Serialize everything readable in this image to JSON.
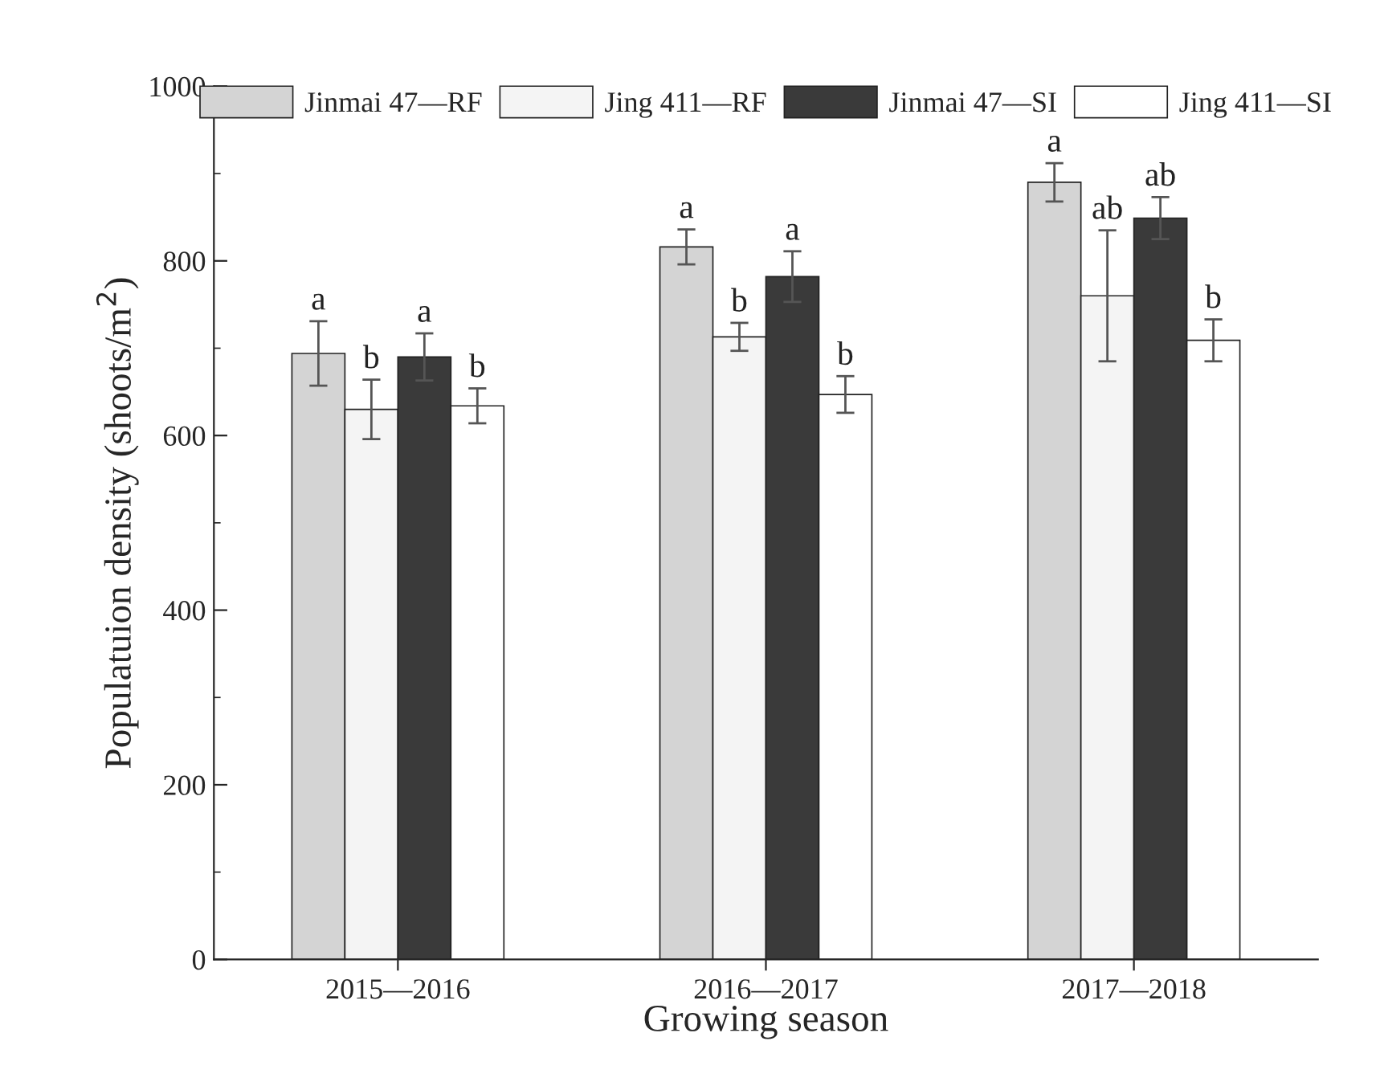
{
  "chart_data": {
    "type": "bar",
    "xlabel": "Growing season",
    "ylabel": "Populatuion density (shoots/m$^{2}$)",
    "categories": [
      "2015—2016",
      "2016—2017",
      "2017—2018"
    ],
    "series": [
      {
        "name": "Jinmai 47—RF",
        "color": "#d4d4d4",
        "values": [
          694,
          816,
          890
        ],
        "errors": [
          37,
          20,
          22
        ],
        "value_labels": [
          "a",
          "a",
          "a"
        ]
      },
      {
        "name": "Jing 411—RF",
        "color": "#f4f4f4",
        "values": [
          630,
          713,
          760
        ],
        "errors": [
          34,
          16,
          75
        ],
        "value_labels": [
          "b",
          "b",
          "ab"
        ]
      },
      {
        "name": "Jinmai 47—SI",
        "color": "#3a3a3a",
        "values": [
          690,
          782,
          849
        ],
        "errors": [
          27,
          29,
          24
        ],
        "value_labels": [
          "a",
          "a",
          "ab"
        ]
      },
      {
        "name": "Jing 411—SI",
        "color": "#ffffff",
        "values": [
          634,
          647,
          709
        ],
        "errors": [
          20,
          21,
          24
        ],
        "value_labels": [
          "b",
          "b",
          "b"
        ]
      }
    ],
    "ylim": [
      0,
      1000
    ],
    "yticks": [
      0,
      200,
      400,
      600,
      800,
      1000
    ],
    "grid": false,
    "legend": "top"
  }
}
